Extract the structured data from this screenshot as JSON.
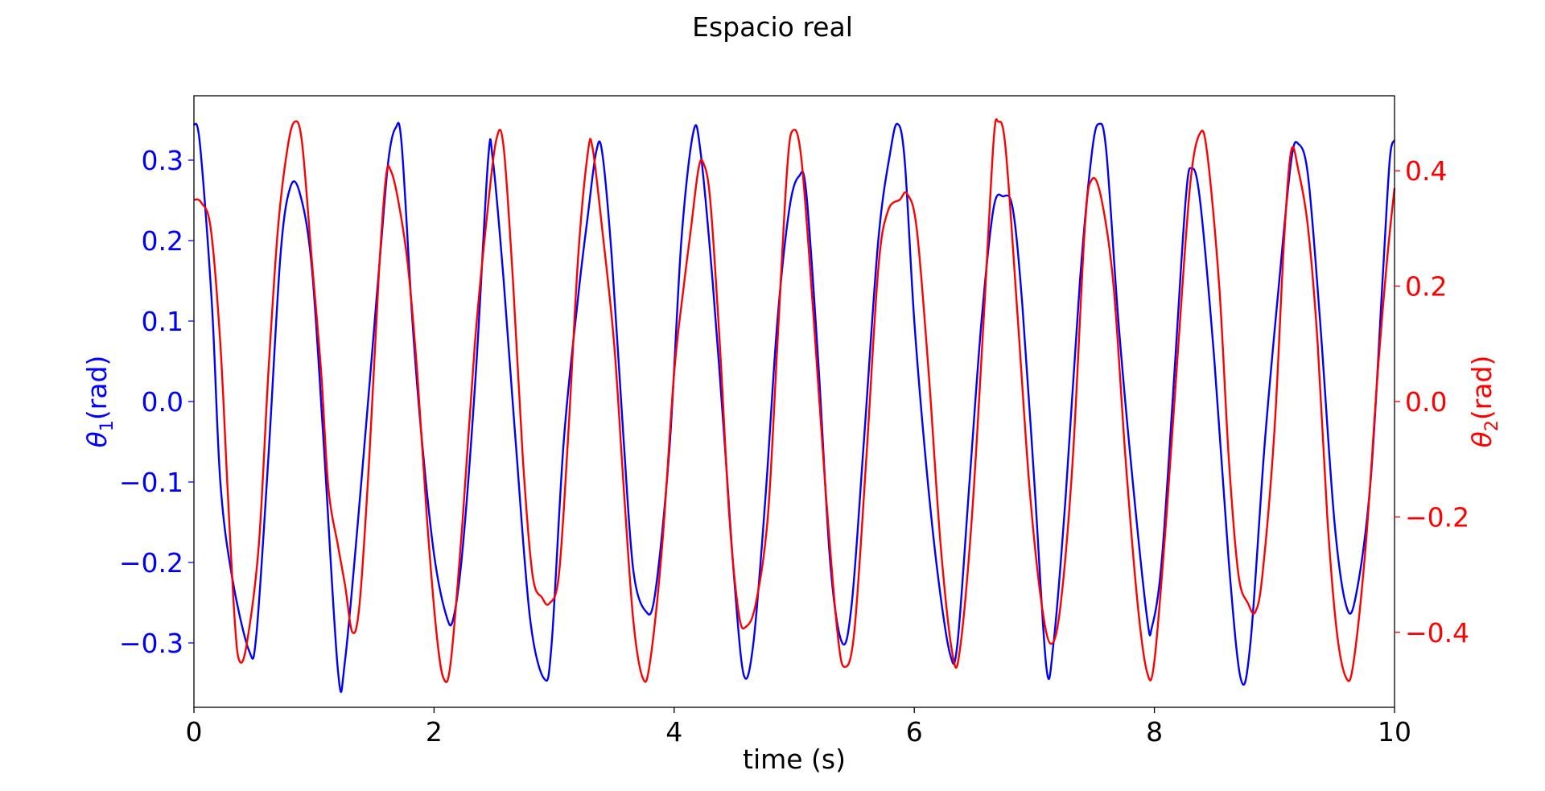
{
  "chart_data": {
    "type": "line",
    "title": "Espacio real",
    "xlabel": "time (s)",
    "ylabel_left_main": "θ",
    "ylabel_left_sub": "1",
    "ylabel_left_rest": "(rad)",
    "ylabel_right_main": "θ",
    "ylabel_right_sub": "2",
    "ylabel_right_rest": "(rad)",
    "xlim": [
      0,
      10
    ],
    "ylim_left": [
      -0.38,
      0.38
    ],
    "ylim_right": [
      -0.53,
      0.53
    ],
    "x_ticks": [
      0,
      2,
      4,
      6,
      8,
      10
    ],
    "x_tick_labels": [
      "0",
      "2",
      "4",
      "6",
      "8",
      "10"
    ],
    "y_left_ticks": [
      -0.3,
      -0.2,
      -0.1,
      0.0,
      0.1,
      0.2,
      0.3
    ],
    "y_left_tick_labels": [
      "−0.3",
      "−0.2",
      "−0.1",
      "0.0",
      "0.1",
      "0.2",
      "0.3"
    ],
    "y_right_ticks": [
      -0.4,
      -0.2,
      0.0,
      0.2,
      0.4
    ],
    "y_right_tick_labels": [
      "−0.4",
      "−0.2",
      "0.0",
      "0.2",
      "0.4"
    ],
    "grid": false,
    "colors": {
      "theta1": "#0000ff",
      "theta2": "#ff0000",
      "axes": "#000000"
    },
    "series": [
      {
        "axis": "left",
        "color": "#0000ff",
        "points": [
          [
            0.0,
            0.345
          ],
          [
            0.05,
            0.32
          ],
          [
            0.15,
            0.12
          ],
          [
            0.22,
            -0.1
          ],
          [
            0.32,
            -0.22
          ],
          [
            0.46,
            -0.31
          ],
          [
            0.52,
            -0.29
          ],
          [
            0.62,
            -0.07
          ],
          [
            0.72,
            0.18
          ],
          [
            0.8,
            0.265
          ],
          [
            0.88,
            0.26
          ],
          [
            0.98,
            0.17
          ],
          [
            1.08,
            -0.05
          ],
          [
            1.2,
            -0.335
          ],
          [
            1.26,
            -0.32
          ],
          [
            1.4,
            -0.09
          ],
          [
            1.55,
            0.18
          ],
          [
            1.62,
            0.3
          ],
          [
            1.68,
            0.34
          ],
          [
            1.73,
            0.32
          ],
          [
            1.82,
            0.1
          ],
          [
            1.9,
            -0.05
          ],
          [
            2.0,
            -0.19
          ],
          [
            2.1,
            -0.265
          ],
          [
            2.16,
            -0.27
          ],
          [
            2.24,
            -0.18
          ],
          [
            2.35,
            0.04
          ],
          [
            2.45,
            0.3
          ],
          [
            2.49,
            0.3
          ],
          [
            2.58,
            0.15
          ],
          [
            2.68,
            -0.05
          ],
          [
            2.8,
            -0.27
          ],
          [
            2.92,
            -0.345
          ],
          [
            2.98,
            -0.3
          ],
          [
            3.08,
            -0.05
          ],
          [
            3.2,
            0.13
          ],
          [
            3.28,
            0.23
          ],
          [
            3.35,
            0.31
          ],
          [
            3.4,
            0.31
          ],
          [
            3.48,
            0.18
          ],
          [
            3.58,
            -0.05
          ],
          [
            3.66,
            -0.21
          ],
          [
            3.76,
            -0.26
          ],
          [
            3.84,
            -0.24
          ],
          [
            3.96,
            -0.06
          ],
          [
            4.06,
            0.2
          ],
          [
            4.16,
            0.335
          ],
          [
            4.22,
            0.31
          ],
          [
            4.32,
            0.15
          ],
          [
            4.42,
            -0.05
          ],
          [
            4.5,
            -0.22
          ],
          [
            4.58,
            -0.34
          ],
          [
            4.66,
            -0.3
          ],
          [
            4.76,
            -0.12
          ],
          [
            4.86,
            0.1
          ],
          [
            4.96,
            0.24
          ],
          [
            5.04,
            0.28
          ],
          [
            5.1,
            0.26
          ],
          [
            5.2,
            0.05
          ],
          [
            5.3,
            -0.2
          ],
          [
            5.4,
            -0.3
          ],
          [
            5.48,
            -0.25
          ],
          [
            5.58,
            -0.05
          ],
          [
            5.7,
            0.2
          ],
          [
            5.8,
            0.31
          ],
          [
            5.86,
            0.345
          ],
          [
            5.92,
            0.3
          ],
          [
            6.0,
            0.1
          ],
          [
            6.1,
            -0.08
          ],
          [
            6.2,
            -0.22
          ],
          [
            6.3,
            -0.315
          ],
          [
            6.36,
            -0.3
          ],
          [
            6.46,
            -0.1
          ],
          [
            6.56,
            0.1
          ],
          [
            6.66,
            0.24
          ],
          [
            6.74,
            0.255
          ],
          [
            6.82,
            0.24
          ],
          [
            6.9,
            0.12
          ],
          [
            7.0,
            -0.1
          ],
          [
            7.1,
            -0.33
          ],
          [
            7.16,
            -0.3
          ],
          [
            7.26,
            -0.12
          ],
          [
            7.38,
            0.15
          ],
          [
            7.48,
            0.31
          ],
          [
            7.54,
            0.345
          ],
          [
            7.6,
            0.31
          ],
          [
            7.7,
            0.1
          ],
          [
            7.82,
            -0.1
          ],
          [
            7.94,
            -0.27
          ],
          [
            7.98,
            -0.28
          ],
          [
            8.06,
            -0.2
          ],
          [
            8.16,
            0.02
          ],
          [
            8.26,
            0.25
          ],
          [
            8.31,
            0.29
          ],
          [
            8.38,
            0.25
          ],
          [
            8.5,
            0.05
          ],
          [
            8.62,
            -0.2
          ],
          [
            8.72,
            -0.345
          ],
          [
            8.8,
            -0.3
          ],
          [
            8.92,
            -0.05
          ],
          [
            9.04,
            0.15
          ],
          [
            9.14,
            0.3
          ],
          [
            9.2,
            0.32
          ],
          [
            9.28,
            0.28
          ],
          [
            9.38,
            0.1
          ],
          [
            9.5,
            -0.15
          ],
          [
            9.6,
            -0.255
          ],
          [
            9.68,
            -0.24
          ],
          [
            9.8,
            -0.1
          ],
          [
            9.9,
            0.15
          ],
          [
            9.96,
            0.3
          ],
          [
            10.0,
            0.325
          ]
        ]
      },
      {
        "axis": "right",
        "color": "#ff0000",
        "points": [
          [
            0.0,
            0.35
          ],
          [
            0.06,
            0.345
          ],
          [
            0.14,
            0.3
          ],
          [
            0.22,
            0.1
          ],
          [
            0.28,
            -0.15
          ],
          [
            0.34,
            -0.38
          ],
          [
            0.38,
            -0.45
          ],
          [
            0.44,
            -0.42
          ],
          [
            0.54,
            -0.25
          ],
          [
            0.62,
            0.05
          ],
          [
            0.7,
            0.3
          ],
          [
            0.78,
            0.44
          ],
          [
            0.84,
            0.485
          ],
          [
            0.9,
            0.45
          ],
          [
            0.98,
            0.25
          ],
          [
            1.06,
            0.05
          ],
          [
            1.12,
            -0.15
          ],
          [
            1.2,
            -0.25
          ],
          [
            1.26,
            -0.32
          ],
          [
            1.32,
            -0.4
          ],
          [
            1.38,
            -0.35
          ],
          [
            1.46,
            -0.1
          ],
          [
            1.54,
            0.22
          ],
          [
            1.6,
            0.39
          ],
          [
            1.64,
            0.4
          ],
          [
            1.7,
            0.35
          ],
          [
            1.78,
            0.24
          ],
          [
            1.86,
            0.05
          ],
          [
            1.94,
            -0.2
          ],
          [
            2.02,
            -0.4
          ],
          [
            2.08,
            -0.48
          ],
          [
            2.14,
            -0.45
          ],
          [
            2.24,
            -0.2
          ],
          [
            2.34,
            0.1
          ],
          [
            2.44,
            0.32
          ],
          [
            2.52,
            0.455
          ],
          [
            2.58,
            0.44
          ],
          [
            2.66,
            0.2
          ],
          [
            2.74,
            -0.1
          ],
          [
            2.82,
            -0.3
          ],
          [
            2.9,
            -0.34
          ],
          [
            2.96,
            -0.35
          ],
          [
            3.04,
            -0.3
          ],
          [
            3.12,
            -0.05
          ],
          [
            3.2,
            0.25
          ],
          [
            3.28,
            0.43
          ],
          [
            3.32,
            0.44
          ],
          [
            3.4,
            0.3
          ],
          [
            3.5,
            0.1
          ],
          [
            3.58,
            -0.15
          ],
          [
            3.66,
            -0.38
          ],
          [
            3.74,
            -0.48
          ],
          [
            3.8,
            -0.45
          ],
          [
            3.9,
            -0.25
          ],
          [
            4.0,
            0.05
          ],
          [
            4.08,
            0.2
          ],
          [
            4.14,
            0.3
          ],
          [
            4.2,
            0.4
          ],
          [
            4.24,
            0.415
          ],
          [
            4.3,
            0.35
          ],
          [
            4.38,
            0.1
          ],
          [
            4.46,
            -0.2
          ],
          [
            4.54,
            -0.37
          ],
          [
            4.6,
            -0.39
          ],
          [
            4.68,
            -0.35
          ],
          [
            4.78,
            -0.2
          ],
          [
            4.86,
            0.1
          ],
          [
            4.94,
            0.4
          ],
          [
            4.99,
            0.47
          ],
          [
            5.06,
            0.42
          ],
          [
            5.16,
            0.15
          ],
          [
            5.26,
            -0.15
          ],
          [
            5.36,
            -0.4
          ],
          [
            5.42,
            -0.46
          ],
          [
            5.5,
            -0.4
          ],
          [
            5.6,
            -0.1
          ],
          [
            5.7,
            0.23
          ],
          [
            5.78,
            0.33
          ],
          [
            5.88,
            0.35
          ],
          [
            5.94,
            0.36
          ],
          [
            6.02,
            0.3
          ],
          [
            6.12,
            0.05
          ],
          [
            6.22,
            -0.25
          ],
          [
            6.32,
            -0.44
          ],
          [
            6.38,
            -0.43
          ],
          [
            6.48,
            -0.2
          ],
          [
            6.58,
            0.15
          ],
          [
            6.66,
            0.45
          ],
          [
            6.7,
            0.485
          ],
          [
            6.76,
            0.44
          ],
          [
            6.86,
            0.15
          ],
          [
            6.96,
            -0.15
          ],
          [
            7.06,
            -0.35
          ],
          [
            7.14,
            -0.42
          ],
          [
            7.22,
            -0.35
          ],
          [
            7.32,
            -0.1
          ],
          [
            7.42,
            0.3
          ],
          [
            7.48,
            0.385
          ],
          [
            7.56,
            0.35
          ],
          [
            7.66,
            0.2
          ],
          [
            7.76,
            -0.1
          ],
          [
            7.86,
            -0.35
          ],
          [
            7.94,
            -0.47
          ],
          [
            8.0,
            -0.45
          ],
          [
            8.1,
            -0.2
          ],
          [
            8.2,
            0.1
          ],
          [
            8.3,
            0.38
          ],
          [
            8.38,
            0.465
          ],
          [
            8.44,
            0.43
          ],
          [
            8.54,
            0.2
          ],
          [
            8.62,
            -0.1
          ],
          [
            8.7,
            -0.3
          ],
          [
            8.78,
            -0.35
          ],
          [
            8.84,
            -0.365
          ],
          [
            8.9,
            -0.3
          ],
          [
            9.0,
            -0.05
          ],
          [
            9.08,
            0.28
          ],
          [
            9.14,
            0.435
          ],
          [
            9.2,
            0.4
          ],
          [
            9.28,
            0.3
          ],
          [
            9.36,
            0.1
          ],
          [
            9.44,
            -0.2
          ],
          [
            9.52,
            -0.4
          ],
          [
            9.6,
            -0.48
          ],
          [
            9.66,
            -0.45
          ],
          [
            9.76,
            -0.25
          ],
          [
            9.86,
            0.05
          ],
          [
            9.94,
            0.25
          ],
          [
            10.0,
            0.37
          ]
        ]
      }
    ]
  }
}
